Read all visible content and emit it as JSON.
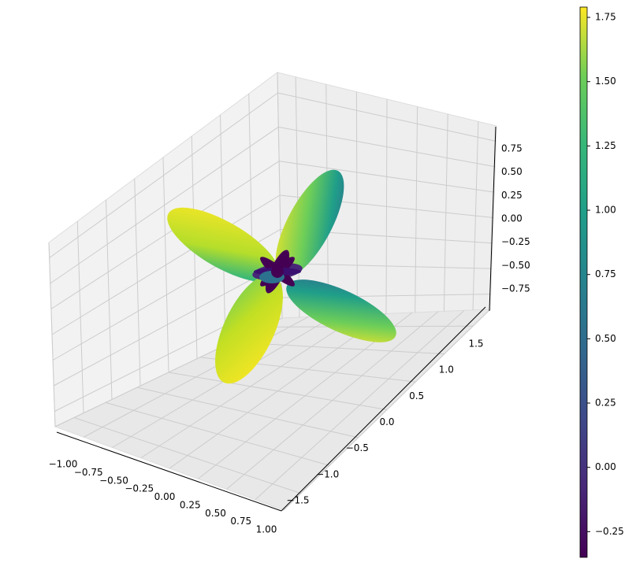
{
  "chart_data": {
    "type": "surface3d",
    "title": "",
    "xlabel": "",
    "ylabel": "",
    "zlabel": "",
    "xlim": [
      -1.0,
      1.0
    ],
    "ylim": [
      -1.8,
      1.8
    ],
    "zlim": [
      -0.9,
      0.9
    ],
    "x_ticks": [
      "−1.00",
      "−0.75",
      "−0.50",
      "−0.25",
      "0.00",
      "0.25",
      "0.50",
      "0.75",
      "1.00"
    ],
    "y_ticks": [
      "−1.5",
      "−1.0",
      "−0.5",
      "0.0",
      "0.5",
      "1.0",
      "1.5"
    ],
    "z_ticks": [
      "−0.75",
      "−0.50",
      "−0.25",
      "0.00",
      "0.25",
      "0.50",
      "0.75"
    ],
    "grid": true,
    "colormap": "viridis",
    "colorbar": {
      "min": -0.35,
      "max": 1.79,
      "ticks": [
        "−0.25",
        "0.00",
        "0.25",
        "0.50",
        "0.75",
        "1.00",
        "1.25",
        "1.50",
        "1.75"
      ],
      "tick_values": [
        -0.25,
        0.0,
        0.25,
        0.5,
        0.75,
        1.0,
        1.25,
        1.5,
        1.75
      ]
    },
    "surface": {
      "shape": "four-lobed radial surface (cloverleaf), value maximal at lobe tips",
      "lobe_count": 4,
      "max_value": 1.79,
      "min_value": -0.35
    },
    "colors": {
      "viridis_low": "#440154",
      "viridis_mid": "#21918c",
      "viridis_high": "#fde725",
      "pane": "#f2f2f2",
      "grid": "#cccccc"
    }
  }
}
